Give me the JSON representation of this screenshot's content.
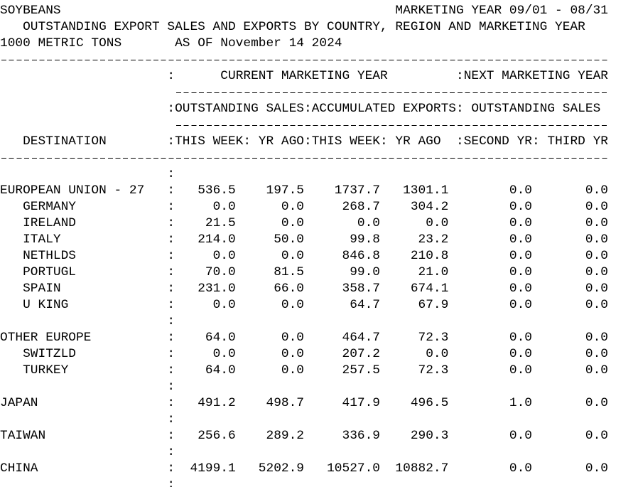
{
  "header": {
    "title": "SOYBEANS",
    "marketing_year": "MARKETING YEAR 09/01 - 08/31",
    "subtitle": "OUTSTANDING EXPORT SALES AND EXPORTS BY COUNTRY, REGION AND MARKETING YEAR",
    "units": "1000 METRIC TONS",
    "as_of": "AS OF November 14 2024"
  },
  "separator": ":",
  "columns": {
    "current": "CURRENT MARKETING YEAR",
    "next": "NEXT MARKETING YEAR",
    "outstanding": "OUTSTANDING SALES",
    "accumulated": "ACCUMULATED EXPORTS",
    "next_outstanding": "OUTSTANDING SALES",
    "destination": "DESTINATION",
    "sub": [
      "THIS WEEK",
      "YR AGO",
      "THIS WEEK",
      "YR AGO",
      "SECOND YR",
      "THIRD YR"
    ]
  },
  "rows": [
    null,
    {
      "label": "EUROPEAN UNION - 27",
      "values": [
        "536.5",
        "197.5",
        "1737.7",
        "1301.1",
        "0.0",
        "0.0"
      ]
    },
    {
      "label": "   GERMANY",
      "values": [
        "0.0",
        "0.0",
        "268.7",
        "304.2",
        "0.0",
        "0.0"
      ]
    },
    {
      "label": "   IRELAND",
      "values": [
        "21.5",
        "0.0",
        "0.0",
        "0.0",
        "0.0",
        "0.0"
      ]
    },
    {
      "label": "   ITALY",
      "values": [
        "214.0",
        "50.0",
        "99.8",
        "23.2",
        "0.0",
        "0.0"
      ]
    },
    {
      "label": "   NETHLDS",
      "values": [
        "0.0",
        "0.0",
        "846.8",
        "210.8",
        "0.0",
        "0.0"
      ]
    },
    {
      "label": "   PORTUGL",
      "values": [
        "70.0",
        "81.5",
        "99.0",
        "21.0",
        "0.0",
        "0.0"
      ]
    },
    {
      "label": "   SPAIN",
      "values": [
        "231.0",
        "66.0",
        "358.7",
        "674.1",
        "0.0",
        "0.0"
      ]
    },
    {
      "label": "   U KING",
      "values": [
        "0.0",
        "0.0",
        "64.7",
        "67.9",
        "0.0",
        "0.0"
      ]
    },
    null,
    {
      "label": "OTHER EUROPE",
      "values": [
        "64.0",
        "0.0",
        "464.7",
        "72.3",
        "0.0",
        "0.0"
      ]
    },
    {
      "label": "   SWITZLD",
      "values": [
        "0.0",
        "0.0",
        "207.2",
        "0.0",
        "0.0",
        "0.0"
      ]
    },
    {
      "label": "   TURKEY",
      "values": [
        "64.0",
        "0.0",
        "257.5",
        "72.3",
        "0.0",
        "0.0"
      ]
    },
    null,
    {
      "label": "JAPAN",
      "values": [
        "491.2",
        "498.7",
        "417.9",
        "496.5",
        "1.0",
        "0.0"
      ]
    },
    null,
    {
      "label": "TAIWAN",
      "values": [
        "256.6",
        "289.2",
        "336.9",
        "290.3",
        "0.0",
        "0.0"
      ]
    },
    null,
    {
      "label": "CHINA",
      "values": [
        "4199.1",
        "5202.9",
        "10527.0",
        "10882.7",
        "0.0",
        "0.0"
      ]
    },
    null
  ]
}
